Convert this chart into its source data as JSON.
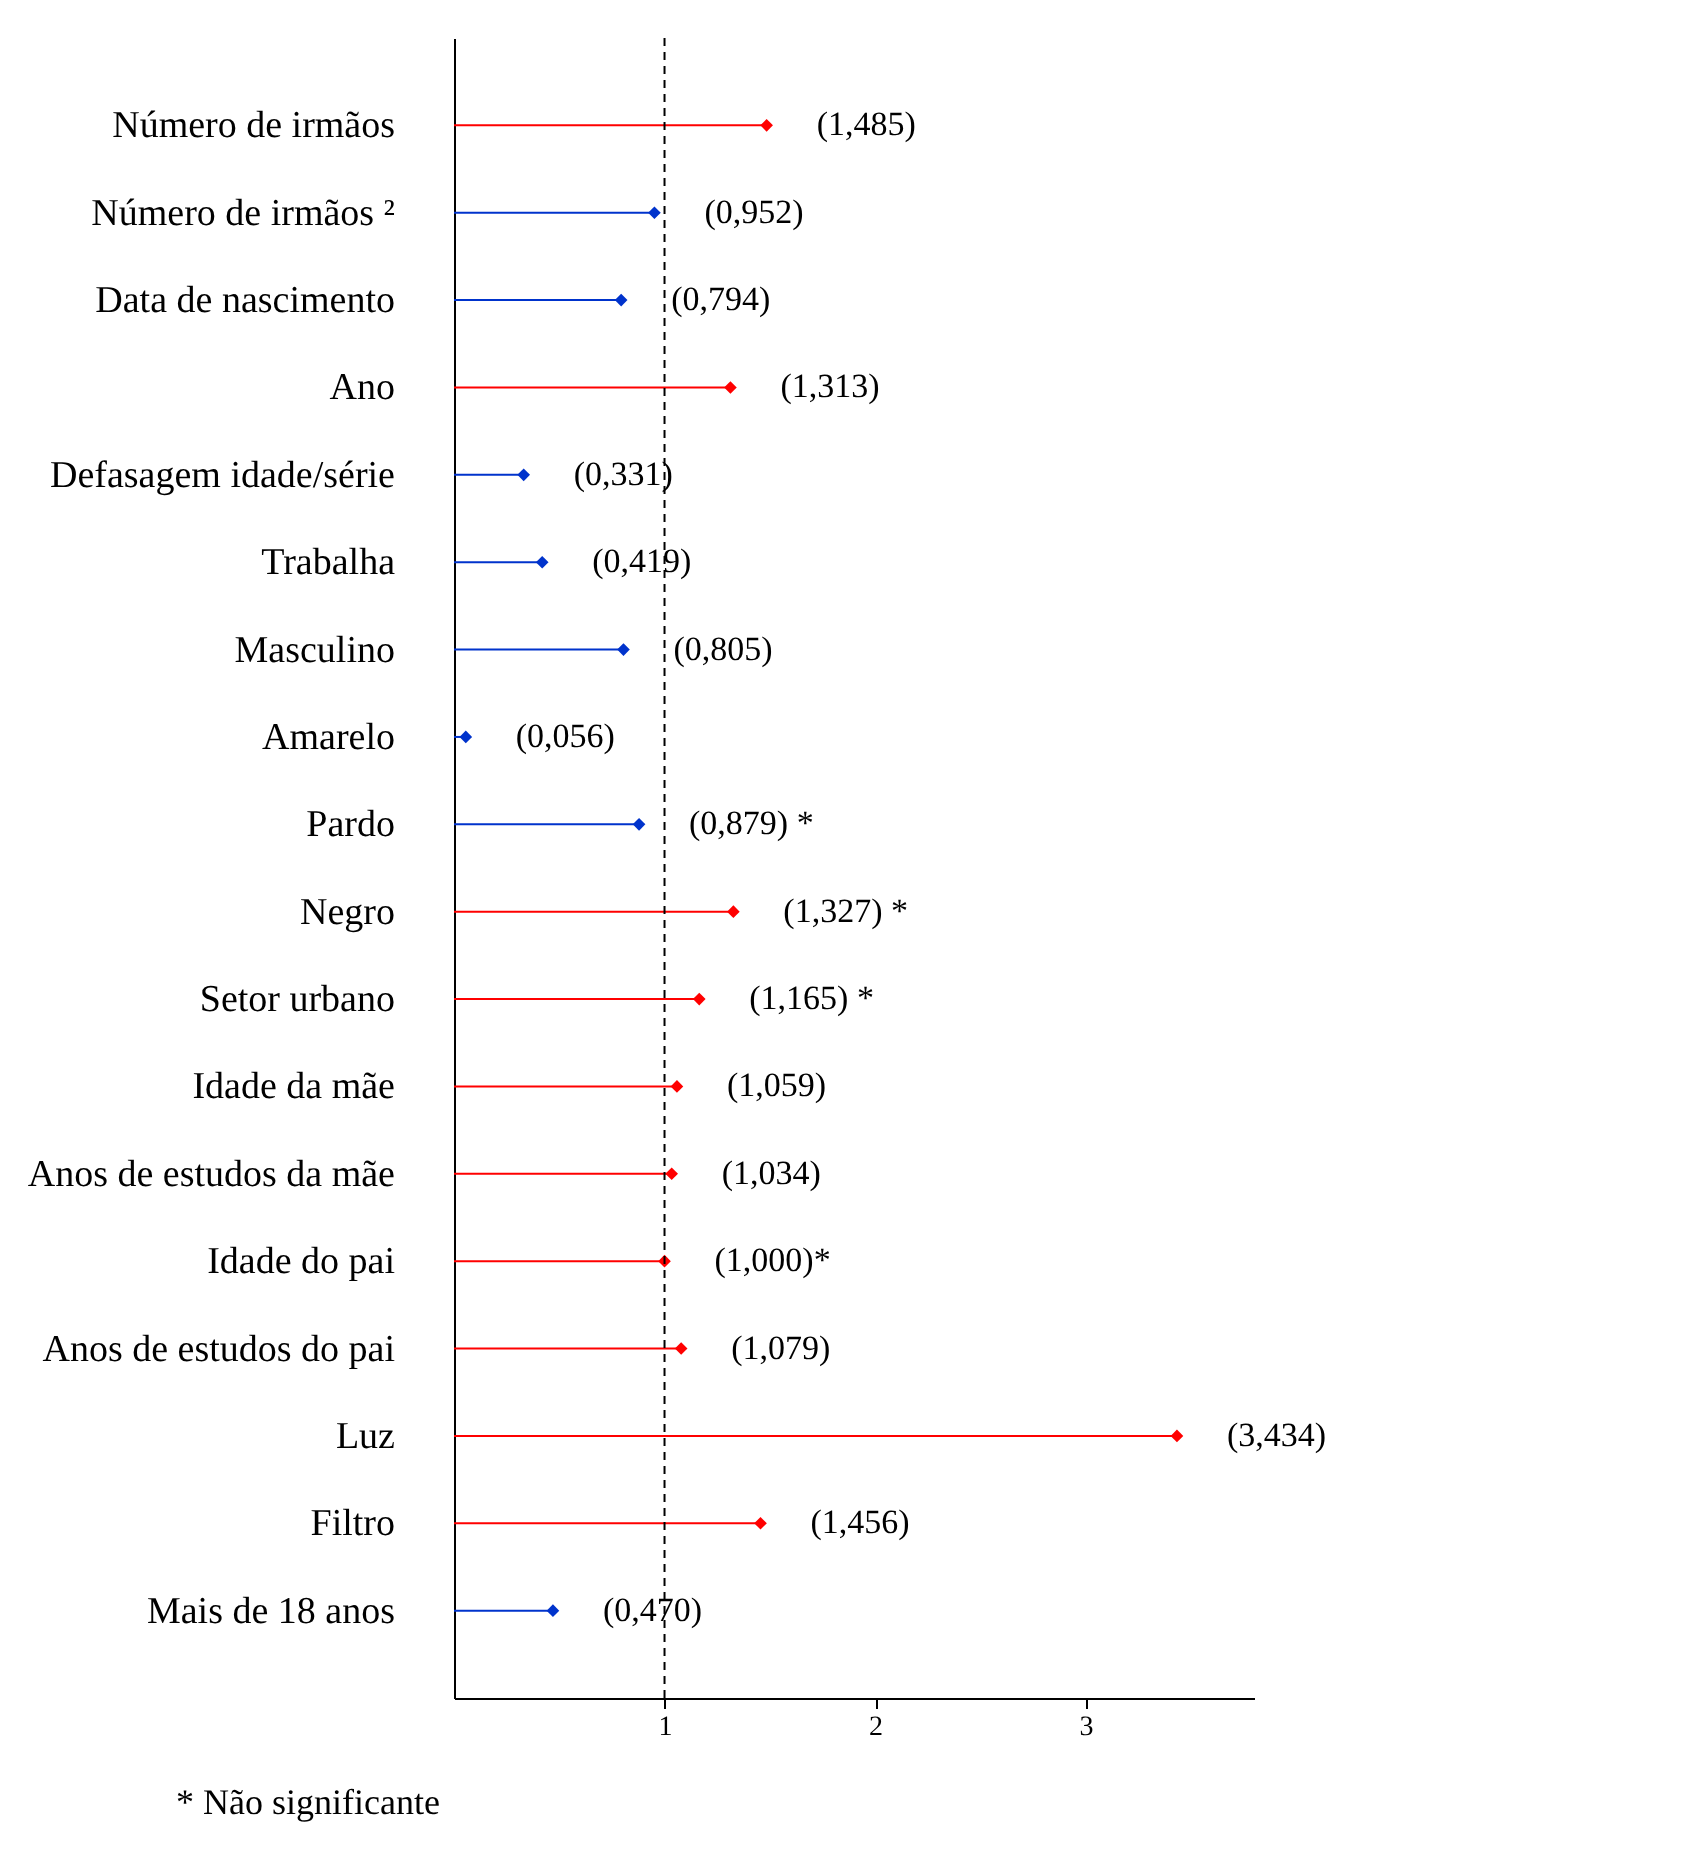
{
  "chart_data": {
    "type": "lollipop",
    "orientation": "horizontal",
    "marker": "diamond",
    "line_style": "solid",
    "grid": false,
    "categories": [
      "Número de irmãos",
      "Número de irmãos ²",
      "Data de nascimento",
      "Ano",
      "Defasagem idade/série",
      "Trabalha",
      "Masculino",
      "Amarelo",
      "Pardo",
      "Negro",
      "Setor urbano",
      "Idade da mãe",
      "Anos de estudos da mãe",
      "Idade do pai",
      "Anos de estudos do pai",
      "Luz",
      "Filtro",
      "Mais de 18 anos"
    ],
    "values": [
      1.485,
      0.952,
      0.794,
      1.313,
      0.331,
      0.419,
      0.805,
      0.056,
      0.879,
      1.327,
      1.165,
      1.059,
      1.034,
      1.0,
      1.079,
      3.434,
      1.456,
      0.47
    ],
    "colors": [
      "#ff0000",
      "#0033cc",
      "#0033cc",
      "#ff0000",
      "#0033cc",
      "#0033cc",
      "#0033cc",
      "#0033cc",
      "#0033cc",
      "#ff0000",
      "#ff0000",
      "#ff0000",
      "#ff0000",
      "#ff0000",
      "#ff0000",
      "#ff0000",
      "#ff0000",
      "#0033cc"
    ],
    "value_labels": [
      "(1,485)",
      "(0,952)",
      "(0,794)",
      "(1,313)",
      "(0,331)",
      "(0,419)",
      "(0,805)",
      "(0,056)",
      "(0,879) *",
      "(1,327) *",
      "(1,165) *",
      "(1,059)",
      "(1,034)",
      "(1,000)*",
      "(1,079)",
      "(3,434)",
      "(1,456)",
      "(0,470)"
    ],
    "xlim": [
      0,
      3.8
    ],
    "xticks": [
      1,
      2,
      3
    ],
    "ref_lines": [
      {
        "axis": "x",
        "value": 1,
        "color": "#000000",
        "line_style": "dashed"
      }
    ],
    "annotations": [
      "* Não significante"
    ]
  }
}
